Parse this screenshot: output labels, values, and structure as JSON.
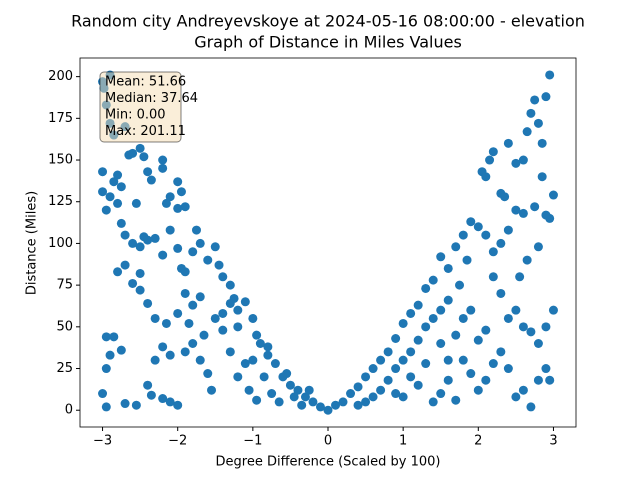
{
  "chart_data": {
    "type": "scatter",
    "title": [
      "Random city Andreyevskoye at 2024-05-16 08:00:00  - elevation",
      "Graph of Distance in Miles Values"
    ],
    "xlabel": "Degree Difference (Scaled by 100)",
    "ylabel": "Distance (Miles)",
    "annotation": [
      "Mean: 51.66",
      "Median: 37.64",
      "Min: 0.00",
      "Max: 201.11"
    ],
    "xlim": [
      -3.3,
      3.3
    ],
    "ylim": [
      -10.06,
      211.17
    ],
    "xticks": [
      {
        "value": -3,
        "label": "−3"
      },
      {
        "value": -2,
        "label": "−2"
      },
      {
        "value": -1,
        "label": "−1"
      },
      0,
      1,
      2,
      3
    ],
    "yticks": [
      0,
      25,
      50,
      75,
      100,
      125,
      150,
      175,
      200
    ],
    "series": [
      {
        "color": "#1f77b4",
        "x": [
          -3.0,
          -2.98,
          -2.9,
          -2.95,
          -2.9,
          -2.85,
          -2.7,
          -3.0,
          -3.0,
          -2.95,
          -2.9,
          -2.85,
          -2.8,
          -2.75,
          -2.8,
          -2.75,
          -2.7,
          -2.65,
          -2.6,
          -2.55,
          -2.5,
          -2.45,
          -2.4,
          -2.35,
          -2.2,
          -2.2,
          -2.1,
          -2.15,
          -2.0,
          -1.95,
          -1.9,
          -2.0,
          -2.6,
          -2.5,
          -2.45,
          -2.4,
          -2.3,
          -2.2,
          -2.1,
          -2.0,
          -1.95,
          -1.9,
          -1.8,
          -1.75,
          -1.7,
          -1.6,
          -1.5,
          -1.45,
          -1.4,
          -1.3,
          -1.25,
          -1.2,
          -1.1,
          -1.0,
          -0.9,
          -0.8,
          -0.7,
          -0.6,
          -0.5,
          -0.4,
          -0.3,
          -0.2,
          -0.1,
          0.0,
          -2.95,
          -2.9,
          -2.85,
          -2.75,
          -2.95,
          -3.0,
          -2.95,
          -2.7,
          -2.55,
          -2.4,
          -2.35,
          -2.2,
          -2.1,
          -2.0,
          -2.3,
          -2.2,
          -2.1,
          -1.9,
          -1.85,
          -1.8,
          -1.7,
          -1.6,
          -1.55,
          -1.5,
          -1.4,
          -1.3,
          -1.2,
          -1.1,
          -1.05,
          -1.0,
          -0.95,
          -0.85,
          -0.75,
          -0.65,
          -0.55,
          -0.45,
          -0.35,
          -0.25,
          -2.8,
          -2.7,
          -2.6,
          -2.5,
          -2.4,
          -2.5,
          -2.3,
          -2.15,
          -2.0,
          -1.9,
          -1.8,
          -1.7,
          -1.65,
          -1.4,
          -1.3,
          -1.2,
          -0.95,
          -0.8,
          0.1,
          0.2,
          0.3,
          0.4,
          0.5,
          0.6,
          0.7,
          0.8,
          0.9,
          1.0,
          1.1,
          1.2,
          1.3,
          1.4,
          1.5,
          1.6,
          1.7,
          1.8,
          1.9,
          2.0,
          2.05,
          2.1,
          2.15,
          2.2,
          2.3,
          2.35,
          2.4,
          2.5,
          2.6,
          2.65,
          2.7,
          2.75,
          2.8,
          2.85,
          2.9,
          2.95,
          2.95,
          3.0,
          2.9,
          2.85,
          2.75,
          2.6,
          2.5,
          2.4,
          2.3,
          2.2,
          2.1,
          1.85,
          1.75,
          1.6,
          1.5,
          1.4,
          1.3,
          1.2,
          1.1,
          1.0,
          0.9,
          0.8,
          0.7,
          0.6,
          0.5,
          0.4,
          1.0,
          1.2,
          1.4,
          1.5,
          1.6,
          1.7,
          1.8,
          1.9,
          2.0,
          2.1,
          2.2,
          2.3,
          2.4,
          2.5,
          2.6,
          2.7,
          2.8,
          2.9,
          2.95,
          3.0,
          2.9,
          2.8,
          2.7,
          2.6,
          2.5,
          2.4,
          2.3,
          2.2,
          2.1,
          2.0,
          1.9,
          1.8,
          1.7,
          1.6,
          1.5,
          1.3,
          1.1,
          0.9,
          2.55,
          2.65,
          2.8
        ],
        "values": [
          197,
          193,
          201,
          183,
          172,
          165,
          170,
          143,
          131,
          120,
          128,
          137,
          141,
          134,
          124,
          112,
          105,
          153,
          154,
          124,
          157,
          152,
          143,
          138,
          150,
          145,
          128,
          124,
          137,
          131,
          122,
          121,
          100,
          98,
          104,
          102,
          103,
          93,
          108,
          97,
          85,
          83,
          95,
          108,
          100,
          90,
          98,
          87,
          80,
          75,
          67,
          60,
          65,
          55,
          40,
          33,
          28,
          20,
          15,
          12,
          8,
          5,
          2,
          0,
          44,
          33,
          44,
          36,
          25,
          10,
          2,
          4,
          3,
          15,
          9,
          7,
          5,
          3,
          30,
          38,
          33,
          35,
          52,
          40,
          30,
          22,
          12,
          55,
          48,
          35,
          20,
          28,
          12,
          30,
          6,
          20,
          10,
          5,
          22,
          8,
          3,
          12,
          83,
          87,
          76,
          72,
          64,
          82,
          55,
          52,
          58,
          70,
          63,
          68,
          45,
          58,
          64,
          50,
          45,
          38,
          3,
          5,
          10,
          14,
          20,
          25,
          30,
          35,
          43,
          52,
          58,
          63,
          73,
          78,
          92,
          85,
          98,
          105,
          113,
          110,
          143,
          140,
          150,
          155,
          130,
          128,
          160,
          148,
          150,
          167,
          178,
          186,
          172,
          160,
          188,
          201,
          115,
          129,
          117,
          140,
          122,
          118,
          120,
          108,
          100,
          95,
          105,
          90,
          75,
          66,
          60,
          55,
          50,
          42,
          35,
          30,
          25,
          18,
          12,
          8,
          5,
          3,
          8,
          15,
          5,
          10,
          18,
          6,
          30,
          22,
          12,
          18,
          28,
          35,
          25,
          8,
          12,
          2,
          18,
          25,
          18,
          60,
          50,
          40,
          47,
          50,
          60,
          55,
          70,
          80,
          48,
          42,
          60,
          55,
          45,
          30,
          40,
          28,
          20,
          10,
          80,
          90,
          98
        ]
      }
    ]
  }
}
